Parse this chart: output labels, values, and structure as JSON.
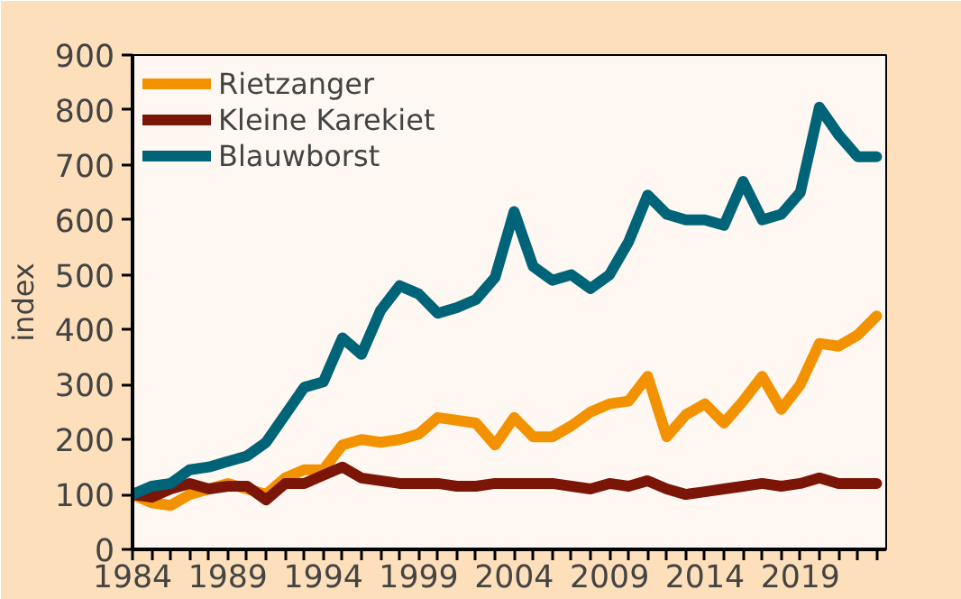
{
  "chart_data": {
    "type": "line",
    "ylabel": "index",
    "x": [
      1984,
      1985,
      1986,
      1987,
      1988,
      1989,
      1990,
      1991,
      1992,
      1993,
      1994,
      1995,
      1996,
      1997,
      1998,
      1999,
      2000,
      2001,
      2002,
      2003,
      2004,
      2005,
      2006,
      2007,
      2008,
      2009,
      2010,
      2011,
      2012,
      2013,
      2014,
      2015,
      2016,
      2017,
      2018,
      2019,
      2020,
      2021,
      2022,
      2023
    ],
    "series": [
      {
        "name": "Rietzanger",
        "color": "#f39200",
        "values": [
          100,
          85,
          80,
          100,
          110,
          120,
          110,
          100,
          130,
          145,
          145,
          190,
          200,
          195,
          200,
          210,
          240,
          235,
          230,
          190,
          240,
          205,
          205,
          225,
          250,
          265,
          270,
          315,
          205,
          245,
          265,
          230,
          270,
          315,
          255,
          300,
          375,
          370,
          390,
          425
        ]
      },
      {
        "name": "Kleine Karekiet",
        "color": "#7b1508",
        "values": [
          100,
          95,
          110,
          120,
          110,
          115,
          115,
          90,
          120,
          120,
          135,
          150,
          130,
          125,
          120,
          120,
          120,
          115,
          115,
          120,
          120,
          120,
          120,
          115,
          110,
          120,
          115,
          125,
          110,
          100,
          105,
          110,
          115,
          120,
          115,
          120,
          130,
          120,
          120,
          120
        ]
      },
      {
        "name": "Blauwborst",
        "color": "#006478",
        "values": [
          100,
          115,
          120,
          145,
          150,
          160,
          170,
          195,
          245,
          295,
          305,
          385,
          355,
          435,
          480,
          465,
          430,
          440,
          455,
          495,
          615,
          515,
          490,
          500,
          475,
          500,
          560,
          645,
          610,
          600,
          600,
          590,
          670,
          600,
          610,
          650,
          805,
          755,
          715,
          715
        ]
      }
    ],
    "xlim": [
      1984,
      2023.5
    ],
    "xticks": [
      1984,
      {
        "value": 1985,
        "label": null
      },
      {
        "value": 1986,
        "label": null
      },
      {
        "value": 1987,
        "label": null
      },
      {
        "value": 1988,
        "label": null
      },
      1989,
      {
        "value": 1990,
        "label": null
      },
      {
        "value": 1991,
        "label": null
      },
      {
        "value": 1992,
        "label": null
      },
      {
        "value": 1993,
        "label": null
      },
      1994,
      {
        "value": 1995,
        "label": null
      },
      {
        "value": 1996,
        "label": null
      },
      {
        "value": 1997,
        "label": null
      },
      {
        "value": 1998,
        "label": null
      },
      1999,
      {
        "value": 2000,
        "label": null
      },
      {
        "value": 2001,
        "label": null
      },
      {
        "value": 2002,
        "label": null
      },
      {
        "value": 2003,
        "label": null
      },
      2004,
      {
        "value": 2005,
        "label": null
      },
      {
        "value": 2006,
        "label": null
      },
      {
        "value": 2007,
        "label": null
      },
      {
        "value": 2008,
        "label": null
      },
      2009,
      {
        "value": 2010,
        "label": null
      },
      {
        "value": 2011,
        "label": null
      },
      {
        "value": 2012,
        "label": null
      },
      {
        "value": 2013,
        "label": null
      },
      2014,
      {
        "value": 2015,
        "label": null
      },
      {
        "value": 2016,
        "label": null
      },
      {
        "value": 2017,
        "label": null
      },
      {
        "value": 2018,
        "label": null
      },
      2019,
      {
        "value": 2020,
        "label": null
      },
      {
        "value": 2021,
        "label": null
      },
      {
        "value": 2022,
        "label": null
      },
      {
        "value": 2023,
        "label": null
      }
    ],
    "ylim": [
      0,
      900
    ],
    "yticks": [
      0,
      100,
      200,
      300,
      400,
      500,
      600,
      700,
      800,
      900
    ],
    "grid": false,
    "legend": "top left",
    "marker": "none",
    "line_style": "solid"
  }
}
